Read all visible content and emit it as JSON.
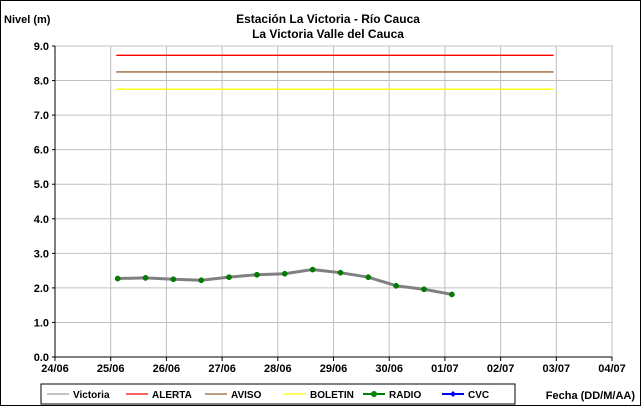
{
  "chart_data": {
    "type": "line",
    "title": "Estación La Victoria - Río Cauca",
    "subtitle": "La Victoria Valle del Cauca",
    "ylabel": "Nivel (m)",
    "xlabel": "Fecha (DD/M/AA)",
    "ylim": [
      0,
      9
    ],
    "y_ticks": [
      "0.0",
      "1.0",
      "2.0",
      "3.0",
      "4.0",
      "5.0",
      "6.0",
      "7.0",
      "8.0",
      "9.0"
    ],
    "x_ticks": [
      "24/06",
      "25/06",
      "26/06",
      "27/06",
      "28/06",
      "29/06",
      "30/06",
      "01/07",
      "02/07",
      "03/07",
      "04/07"
    ],
    "grid": true,
    "legend_position": "bottom",
    "thresholds": [
      {
        "name": "ALERTA",
        "value": 8.73,
        "color": "#ff0000"
      },
      {
        "name": "AVISO",
        "value": 8.25,
        "color": "#996633"
      },
      {
        "name": "BOLETIN",
        "value": 7.75,
        "color": "#ffff00"
      }
    ],
    "threshold_x_range": [
      1.1,
      8.95
    ],
    "series": [
      {
        "name": "RADIO",
        "color": "#808080",
        "marker_color": "#008000",
        "x": [
          1.125,
          1.625,
          2.125,
          2.625,
          3.125,
          3.625,
          4.125,
          4.625,
          5.125,
          5.625,
          6.125,
          6.625,
          7.125
        ],
        "values": [
          2.27,
          2.29,
          2.25,
          2.22,
          2.31,
          2.38,
          2.41,
          2.53,
          2.44,
          2.31,
          2.06,
          1.96,
          1.81
        ]
      }
    ],
    "legend": [
      {
        "name": "Victoria",
        "color": "#c0c0c0",
        "marker": "none"
      },
      {
        "name": "ALERTA",
        "color": "#ff0000",
        "marker": "none"
      },
      {
        "name": "AVISO",
        "color": "#996633",
        "marker": "none"
      },
      {
        "name": "BOLETIN",
        "color": "#ffff00",
        "marker": "none"
      },
      {
        "name": "RADIO",
        "color": "#008000",
        "marker": "circle"
      },
      {
        "name": "CVC",
        "color": "#0000ff",
        "marker": "diamond"
      }
    ]
  }
}
